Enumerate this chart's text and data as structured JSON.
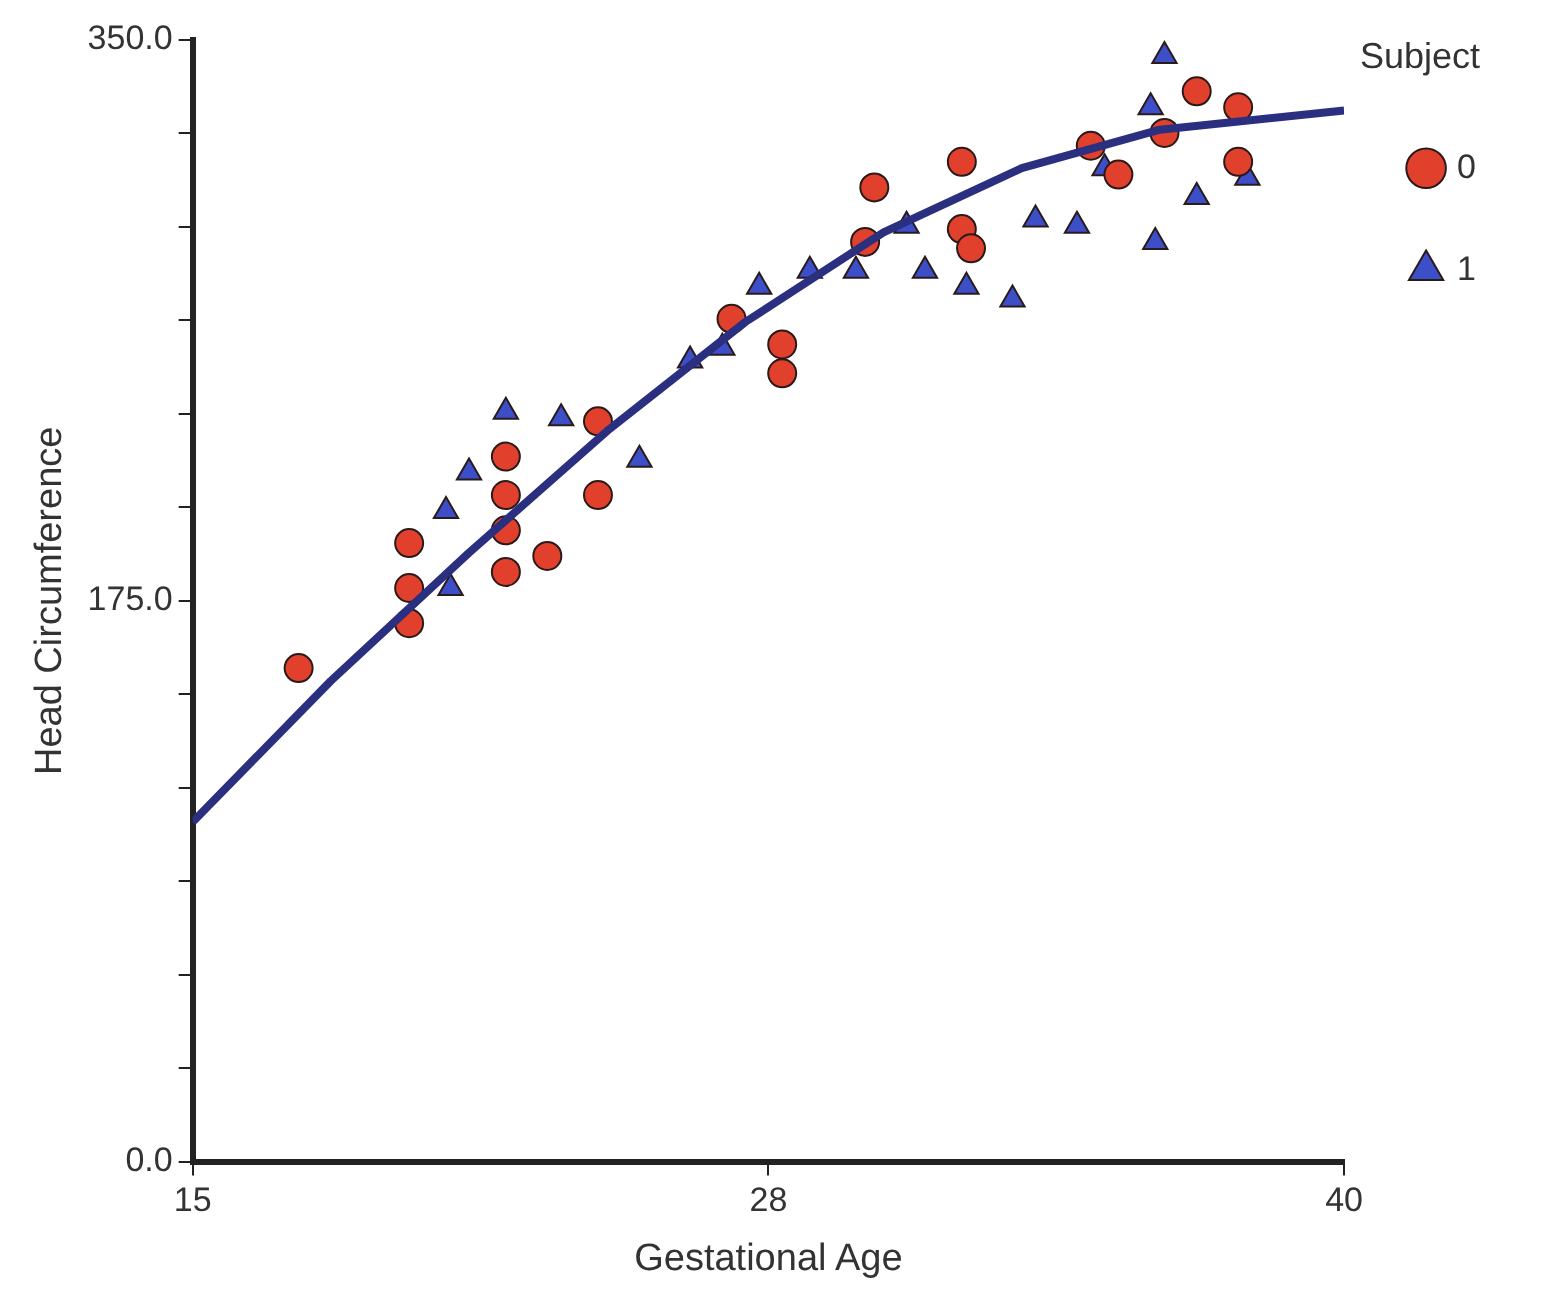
{
  "chart_data": {
    "type": "scatter",
    "xlabel": "Gestational Age",
    "ylabel": "Head Circumference",
    "legend_title": "Subject",
    "legend": "top right",
    "grid": false,
    "xlim": [
      15,
      40
    ],
    "xticks": [
      15,
      {
        "value": 27.5,
        "label": "28"
      },
      40
    ],
    "ylim": [
      0,
      350
    ],
    "yticks": [
      {
        "value": 0,
        "label": "0.0"
      },
      {
        "value": 29.17,
        "label": null
      },
      {
        "value": 58.33,
        "label": null
      },
      {
        "value": 87.5,
        "label": null
      },
      {
        "value": 116.67,
        "label": null
      },
      {
        "value": 145.83,
        "label": null
      },
      {
        "value": 175,
        "label": "175.0"
      },
      {
        "value": 204.17,
        "label": null
      },
      {
        "value": 233.33,
        "label": null
      },
      {
        "value": 262.5,
        "label": null
      },
      {
        "value": 291.67,
        "label": null
      },
      {
        "value": 320.83,
        "label": null
      },
      {
        "value": 350,
        "label": "350.0"
      }
    ],
    "series": [
      {
        "name": "0",
        "color": "#e0402c",
        "marker": "circle",
        "x": [
          17.3,
          19.7,
          19.7,
          19.7,
          21.8,
          21.8,
          21.8,
          21.8,
          22.7,
          23.8,
          23.8,
          26.7,
          27.8,
          27.8,
          29.8,
          29.6,
          31.7,
          31.7,
          31.9,
          34.5,
          35.1,
          36.8,
          37.7,
          37.7,
          36.1
        ],
        "values": [
          154,
          193,
          179,
          168,
          220,
          208,
          197,
          184,
          189,
          231,
          208,
          263,
          255,
          246,
          304,
          287,
          312,
          291,
          285,
          317,
          308,
          334,
          329,
          312,
          321
        ]
      },
      {
        "name": "1",
        "color": "#3d4fc8",
        "marker": "triangle",
        "x": [
          20.5,
          20.6,
          21.8,
          23,
          24.7,
          25.8,
          26.5,
          27.3,
          28.4,
          29.4,
          30.5,
          30.9,
          31.8,
          32.8,
          34.2,
          35.8,
          36.1,
          35.9,
          36.8,
          37.9,
          34.8,
          33.3,
          21
        ],
        "values": [
          203,
          179,
          234,
          232,
          219,
          250,
          254,
          273,
          278,
          278,
          292,
          278,
          273,
          269,
          292,
          329,
          345,
          287,
          301,
          307,
          310,
          294,
          215
        ]
      },
      {
        "type": "line",
        "color": "#2b2f80",
        "marker": "none",
        "x": [
          15,
          18,
          21,
          24,
          27,
          30,
          33,
          36,
          40
        ],
        "values": [
          106,
          150,
          190,
          228,
          262,
          290,
          310,
          322,
          328
        ]
      }
    ]
  }
}
